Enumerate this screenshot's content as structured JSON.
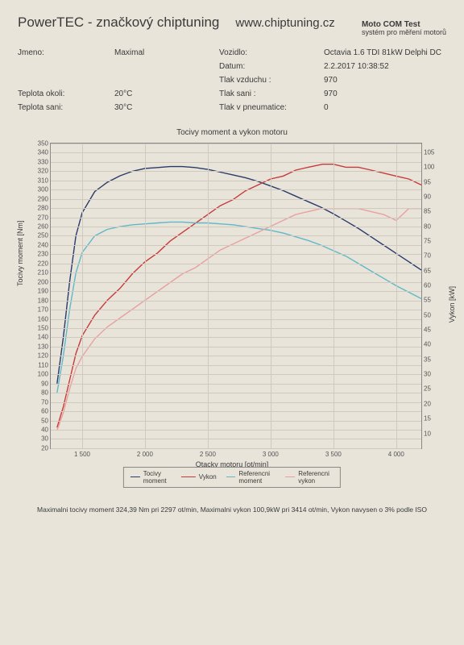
{
  "header": {
    "title": "PowerTEC - značkový chiptuning",
    "url": "www.chiptuning.cz",
    "right_l1": "Moto COM Test",
    "right_l2": "systém pro měření motorů"
  },
  "meta": {
    "jmeno_lbl": "Jmeno:",
    "jmeno_val": "Maximal",
    "vozidlo_lbl": "Vozidlo:",
    "vozidlo_val": "Octavia 1.6 TDI 81kW Delphi DC",
    "datum_lbl": "Datum:",
    "datum_val": "2.2.2017 10:38:52",
    "tlakv_lbl": "Tlak vzduchu :",
    "tlakv_val": "970",
    "teplo_lbl": "Teplota okoli:",
    "teplo_val": "20°C",
    "tlaks_lbl": "Tlak sani :",
    "tlaks_val": "970",
    "teps_lbl": "Teplota sani:",
    "teps_val": "30°C",
    "tlakp_lbl": "Tlak v pneumatice:",
    "tlakp_val": "0"
  },
  "chart": {
    "title": "Tocivy moment a vykon motoru",
    "xlabel": "Otacky motoru [ot/min]",
    "ylabel_left": "Tocivy moment [Nm]",
    "ylabel_right": "Vykon [kW]",
    "xlim": [
      1250,
      4200
    ],
    "ylim_left": [
      20,
      350
    ],
    "ylim_right": [
      5,
      108
    ],
    "yticks_left": [
      20,
      30,
      40,
      50,
      60,
      70,
      80,
      90,
      100,
      110,
      120,
      130,
      140,
      150,
      160,
      170,
      180,
      190,
      200,
      210,
      220,
      230,
      240,
      250,
      260,
      270,
      280,
      290,
      300,
      310,
      320,
      330,
      340,
      350
    ],
    "yticks_right": [
      10,
      15,
      20,
      25,
      30,
      35,
      40,
      45,
      50,
      55,
      60,
      65,
      70,
      75,
      80,
      85,
      90,
      95,
      100,
      105
    ],
    "xticks": [
      1500,
      2000,
      2500,
      3000,
      3500,
      4000
    ],
    "grid_color": "#cfcabd",
    "border_color": "#888888",
    "background": "#e8e4da",
    "series": [
      {
        "name": "Tocivy moment",
        "color": "#2a3a6a",
        "axis": "left",
        "points": [
          [
            1300,
            90
          ],
          [
            1350,
            140
          ],
          [
            1400,
            200
          ],
          [
            1450,
            250
          ],
          [
            1500,
            275
          ],
          [
            1600,
            298
          ],
          [
            1700,
            308
          ],
          [
            1800,
            315
          ],
          [
            1900,
            320
          ],
          [
            2000,
            323
          ],
          [
            2100,
            324
          ],
          [
            2200,
            325
          ],
          [
            2297,
            325
          ],
          [
            2400,
            324
          ],
          [
            2500,
            322
          ],
          [
            2600,
            319
          ],
          [
            2700,
            316
          ],
          [
            2800,
            313
          ],
          [
            2900,
            309
          ],
          [
            3000,
            304
          ],
          [
            3100,
            299
          ],
          [
            3200,
            293
          ],
          [
            3300,
            287
          ],
          [
            3400,
            281
          ],
          [
            3500,
            274
          ],
          [
            3600,
            266
          ],
          [
            3700,
            258
          ],
          [
            3800,
            249
          ],
          [
            3900,
            240
          ],
          [
            4000,
            231
          ],
          [
            4100,
            222
          ],
          [
            4200,
            213
          ]
        ]
      },
      {
        "name": "Vykon",
        "color": "#c83a3a",
        "axis": "right",
        "points": [
          [
            1300,
            12
          ],
          [
            1350,
            19
          ],
          [
            1400,
            28
          ],
          [
            1450,
            37
          ],
          [
            1500,
            43
          ],
          [
            1600,
            50
          ],
          [
            1700,
            55
          ],
          [
            1800,
            59
          ],
          [
            1900,
            64
          ],
          [
            2000,
            68
          ],
          [
            2100,
            71
          ],
          [
            2200,
            75
          ],
          [
            2300,
            78
          ],
          [
            2400,
            81
          ],
          [
            2500,
            84
          ],
          [
            2600,
            87
          ],
          [
            2700,
            89
          ],
          [
            2800,
            92
          ],
          [
            2900,
            94
          ],
          [
            3000,
            96
          ],
          [
            3100,
            97
          ],
          [
            3200,
            99
          ],
          [
            3300,
            100
          ],
          [
            3414,
            101
          ],
          [
            3500,
            101
          ],
          [
            3600,
            100
          ],
          [
            3700,
            100
          ],
          [
            3800,
            99
          ],
          [
            3900,
            98
          ],
          [
            4000,
            97
          ],
          [
            4100,
            96
          ],
          [
            4200,
            94
          ]
        ]
      },
      {
        "name": "Referencni moment",
        "color": "#5fb8c8",
        "axis": "left",
        "points": [
          [
            1300,
            80
          ],
          [
            1350,
            120
          ],
          [
            1400,
            170
          ],
          [
            1450,
            210
          ],
          [
            1500,
            232
          ],
          [
            1600,
            250
          ],
          [
            1700,
            257
          ],
          [
            1800,
            260
          ],
          [
            1900,
            262
          ],
          [
            2000,
            263
          ],
          [
            2100,
            264
          ],
          [
            2200,
            265
          ],
          [
            2300,
            265
          ],
          [
            2400,
            264
          ],
          [
            2500,
            264
          ],
          [
            2600,
            263
          ],
          [
            2700,
            262
          ],
          [
            2800,
            260
          ],
          [
            2900,
            258
          ],
          [
            3000,
            256
          ],
          [
            3100,
            253
          ],
          [
            3200,
            249
          ],
          [
            3300,
            245
          ],
          [
            3400,
            240
          ],
          [
            3500,
            234
          ],
          [
            3600,
            228
          ],
          [
            3700,
            220
          ],
          [
            3800,
            212
          ],
          [
            3900,
            204
          ],
          [
            4000,
            196
          ],
          [
            4100,
            189
          ],
          [
            4200,
            182
          ]
        ]
      },
      {
        "name": "Referencni vykon",
        "color": "#e8a0a0",
        "axis": "right",
        "points": [
          [
            1300,
            11
          ],
          [
            1350,
            17
          ],
          [
            1400,
            25
          ],
          [
            1450,
            32
          ],
          [
            1500,
            36
          ],
          [
            1600,
            42
          ],
          [
            1700,
            46
          ],
          [
            1800,
            49
          ],
          [
            1900,
            52
          ],
          [
            2000,
            55
          ],
          [
            2100,
            58
          ],
          [
            2200,
            61
          ],
          [
            2300,
            64
          ],
          [
            2400,
            66
          ],
          [
            2500,
            69
          ],
          [
            2600,
            72
          ],
          [
            2700,
            74
          ],
          [
            2800,
            76
          ],
          [
            2900,
            78
          ],
          [
            3000,
            80
          ],
          [
            3100,
            82
          ],
          [
            3200,
            84
          ],
          [
            3300,
            85
          ],
          [
            3400,
            86
          ],
          [
            3500,
            86
          ],
          [
            3600,
            86
          ],
          [
            3700,
            86
          ],
          [
            3800,
            85
          ],
          [
            3900,
            84
          ],
          [
            4000,
            82
          ],
          [
            4050,
            84
          ],
          [
            4100,
            86
          ],
          [
            4150,
            86
          ],
          [
            4200,
            86
          ]
        ]
      }
    ],
    "legend": [
      {
        "label": "Tocivy moment",
        "color": "#2a3a6a"
      },
      {
        "label": "Vykon",
        "color": "#c83a3a"
      },
      {
        "label": "Referencni moment",
        "color": "#5fb8c8"
      },
      {
        "label": "Referencni vykon",
        "color": "#e8a0a0"
      }
    ]
  },
  "footer": "Maximalni tocivy moment 324,39 Nm pri 2297 ot/min,   Maximalni vykon 100,9kW pri 3414 ot/min,   Vykon navysen o 3% podle ISO"
}
